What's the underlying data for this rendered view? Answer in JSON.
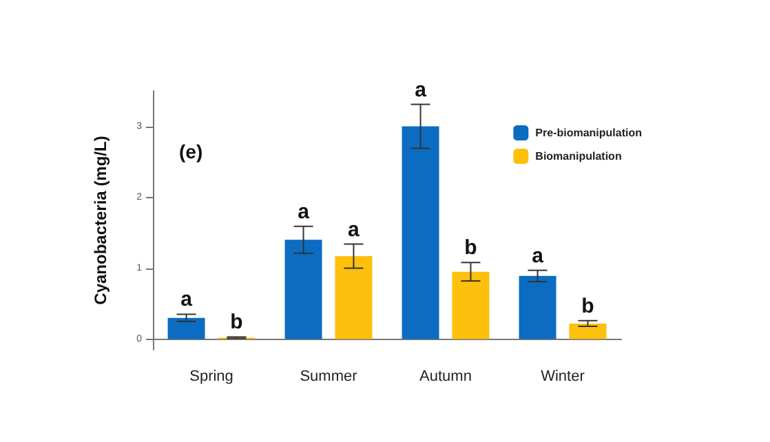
{
  "chart_data": {
    "type": "bar",
    "ylabel": "Cyanobacteria (mg/L)",
    "categories": [
      "Spring",
      "Summer",
      "Autumn",
      "Winter"
    ],
    "series": [
      {
        "name": "Pre-biomanipulation",
        "color": "#0b6cc1",
        "values": [
          0.3,
          1.4,
          3.0,
          0.89
        ],
        "errors": [
          0.05,
          0.19,
          0.31,
          0.08
        ],
        "value_labels": [
          "a",
          "a",
          "a",
          "a"
        ]
      },
      {
        "name": "Biomanipulation",
        "color": "#fdc00c",
        "values": [
          0.02,
          1.17,
          0.95,
          0.22
        ],
        "errors": [
          0.01,
          0.17,
          0.13,
          0.04
        ],
        "value_labels": [
          "b",
          "a",
          "b",
          "b"
        ]
      }
    ],
    "ylim": [
      -0.15,
      3.5
    ],
    "yticks": [
      0,
      1,
      2,
      3
    ],
    "grid": false,
    "legend": "top right",
    "annotations": [
      "(e)"
    ]
  }
}
